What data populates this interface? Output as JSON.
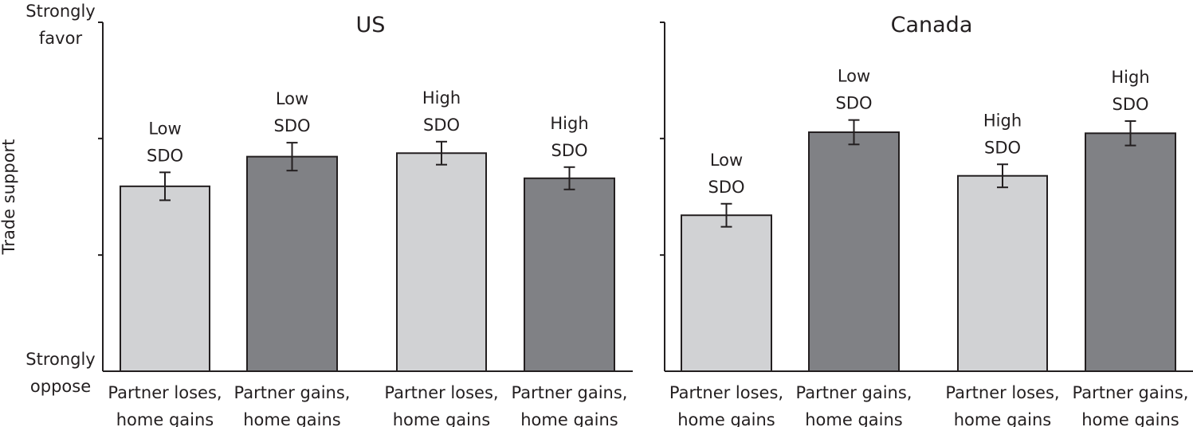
{
  "chart_data": {
    "type": "bar",
    "y_axis": {
      "title": "Trade support",
      "top_label": [
        "Strongly",
        "favor"
      ],
      "bottom_label": [
        "Strongly",
        "oppose"
      ],
      "ylim": [
        0,
        1
      ],
      "minor_ticks": [
        0.333,
        0.667
      ]
    },
    "colors": {
      "light": "#d1d2d4",
      "dark": "#808185",
      "outline": "#231f20"
    },
    "panels": [
      {
        "title": "US",
        "bars": [
          {
            "category": [
              "Partner loses,",
              "home gains"
            ],
            "label": [
              "Low",
              "SDO"
            ],
            "value": 0.53,
            "error": 0.04,
            "color": "light"
          },
          {
            "category": [
              "Partner gains,",
              "home gains"
            ],
            "label": [
              "Low",
              "SDO"
            ],
            "value": 0.615,
            "error": 0.04,
            "color": "dark"
          },
          {
            "category": [
              "Partner loses,",
              "home gains"
            ],
            "label": [
              "High",
              "SDO"
            ],
            "value": 0.625,
            "error": 0.033,
            "color": "light"
          },
          {
            "category": [
              "Partner gains,",
              "home gains"
            ],
            "label": [
              "High",
              "SDO"
            ],
            "value": 0.553,
            "error": 0.032,
            "color": "dark"
          }
        ]
      },
      {
        "title": "Canada",
        "bars": [
          {
            "category": [
              "Partner loses,",
              "home gains"
            ],
            "label": [
              "Low",
              "SDO"
            ],
            "value": 0.447,
            "error": 0.033,
            "color": "light"
          },
          {
            "category": [
              "Partner gains,",
              "home gains"
            ],
            "label": [
              "Low",
              "SDO"
            ],
            "value": 0.685,
            "error": 0.035,
            "color": "dark"
          },
          {
            "category": [
              "Partner loses,",
              "home gains"
            ],
            "label": [
              "High",
              "SDO"
            ],
            "value": 0.56,
            "error": 0.033,
            "color": "light"
          },
          {
            "category": [
              "Partner gains,",
              "home gains"
            ],
            "label": [
              "High",
              "SDO"
            ],
            "value": 0.682,
            "error": 0.035,
            "color": "dark"
          }
        ]
      }
    ]
  }
}
